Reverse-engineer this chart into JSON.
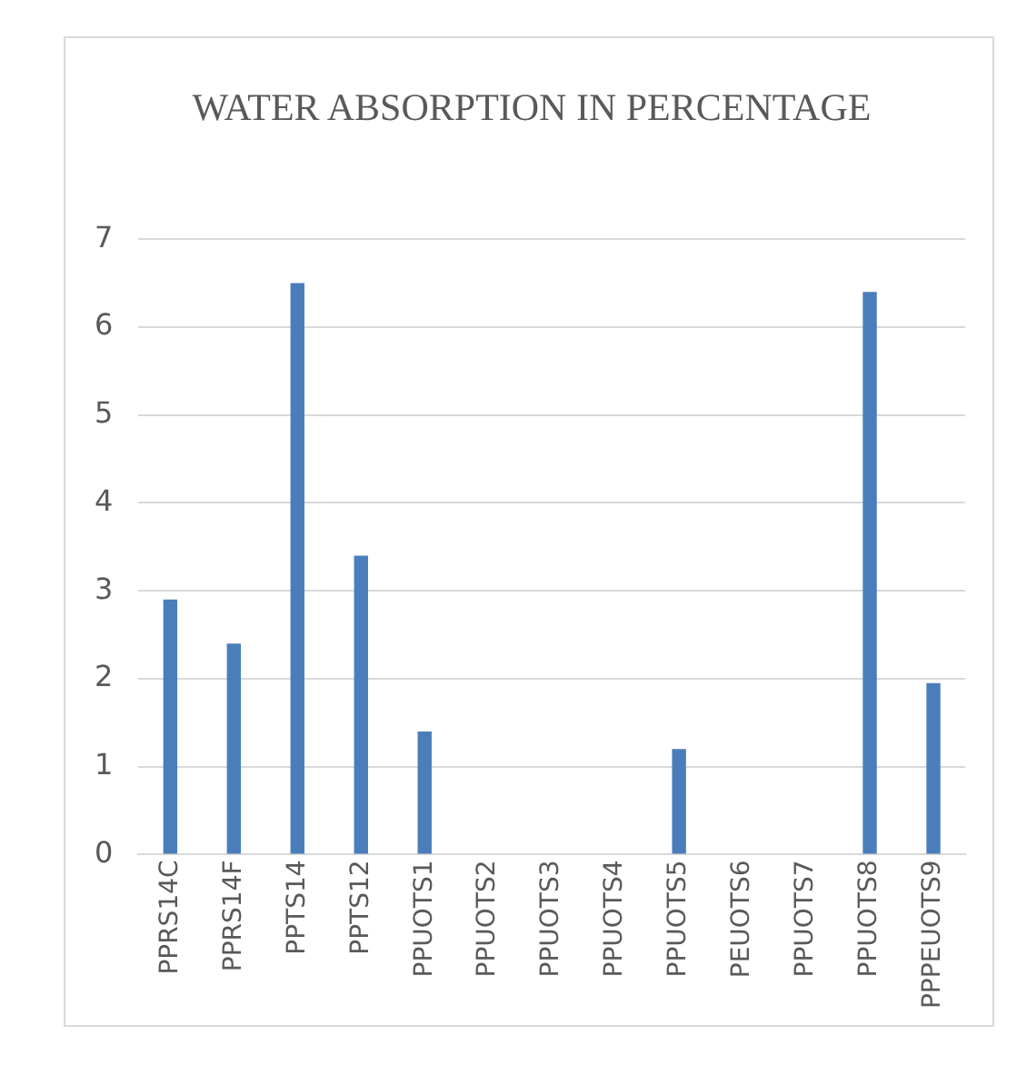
{
  "chart_data": {
    "type": "bar",
    "title": "WATER ABSORPTION IN PERCENTAGE",
    "categories": [
      "PPRS14C",
      "PPRS14F",
      "PPTS14",
      "PPTS12",
      "PPUOTS1",
      "PPUOTS2",
      "PPUOTS3",
      "PPUOTS4",
      "PPUOTS5",
      "PEUOTS6",
      "PPUOTS7",
      "PPUOTS8",
      "PPPEUOTS9"
    ],
    "values": [
      2.9,
      2.4,
      6.5,
      3.4,
      1.4,
      0,
      0,
      0,
      1.2,
      0,
      0,
      6.4,
      1.95
    ],
    "color": "#4a7ebb",
    "ylim": [
      0,
      7
    ],
    "yticks": [
      0,
      1,
      2,
      3,
      4,
      5,
      6,
      7
    ],
    "grid": "y",
    "legend": false
  }
}
